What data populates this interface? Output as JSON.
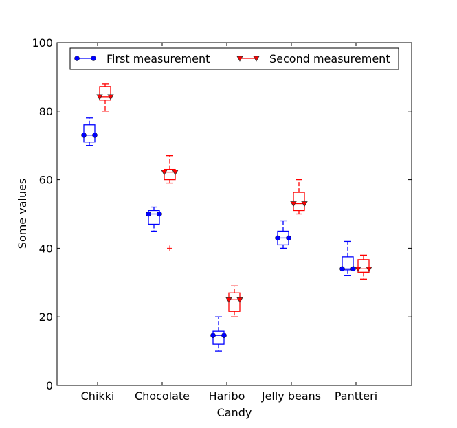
{
  "chart_data": {
    "type": "boxplot",
    "xlabel": "Candy",
    "ylabel": "Some values",
    "ylim": [
      0,
      100
    ],
    "yticks": [
      0,
      20,
      40,
      60,
      80,
      100
    ],
    "categories": [
      "Chikki",
      "Chocolate",
      "Haribo",
      "Jelly beans",
      "Pantteri"
    ],
    "legend_position": "top",
    "series": [
      {
        "name": "First measurement",
        "color": "#0000ff",
        "marker": "circle",
        "boxes": [
          {
            "whislo": 70,
            "q1": 71,
            "med": 73,
            "q3": 76,
            "whishi": 78,
            "fliers": []
          },
          {
            "whislo": 45,
            "q1": 47,
            "med": 50,
            "q3": 51,
            "whishi": 52,
            "fliers": []
          },
          {
            "whislo": 10,
            "q1": 12,
            "med": 14.6,
            "q3": 15.8,
            "whishi": 20,
            "fliers": []
          },
          {
            "whislo": 40,
            "q1": 41,
            "med": 43,
            "q3": 45,
            "whishi": 48,
            "fliers": []
          },
          {
            "whislo": 32,
            "q1": 33.7,
            "med": 34,
            "q3": 37.5,
            "whishi": 42,
            "fliers": []
          }
        ]
      },
      {
        "name": "Second measurement",
        "color": "#ff0000",
        "marker": "triangle-down",
        "boxes": [
          {
            "whislo": 80,
            "q1": 83.2,
            "med": 84.2,
            "q3": 87.2,
            "whishi": 88,
            "fliers": []
          },
          {
            "whislo": 59,
            "q1": 60,
            "med": 62.2,
            "q3": 63,
            "whishi": 67,
            "fliers": [
              40
            ]
          },
          {
            "whislo": 20,
            "q1": 21.6,
            "med": 25,
            "q3": 27,
            "whishi": 29,
            "fliers": []
          },
          {
            "whislo": 50,
            "q1": 51,
            "med": 53,
            "q3": 56.3,
            "whishi": 60,
            "fliers": []
          },
          {
            "whislo": 31,
            "q1": 33,
            "med": 34,
            "q3": 36.7,
            "whishi": 38,
            "fliers": []
          }
        ]
      }
    ]
  }
}
